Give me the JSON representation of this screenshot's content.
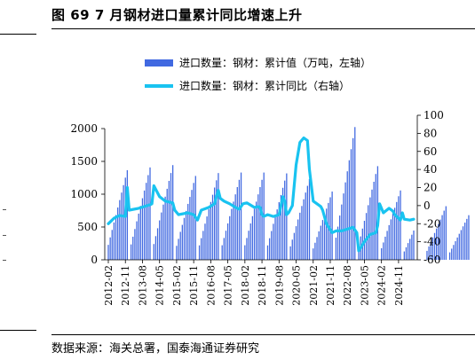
{
  "figure": {
    "title": "图 69 7 月钢材进口量累计同比增速上升",
    "source": "数据来源：海关总署，国泰海通证券研究"
  },
  "chart_data": {
    "type": "bar+line",
    "title": "图 69 7 月钢材进口量累计同比增速上升",
    "legend_position": "top-left",
    "grid": false,
    "x_labels": [
      "2012-02",
      "2012-11",
      "2013-08",
      "2014-05",
      "2015-02",
      "2015-11",
      "2016-08",
      "2017-05",
      "2018-02",
      "2018-11",
      "2019-08",
      "2020-05",
      "2021-02",
      "2021-11",
      "2022-08",
      "2023-05",
      "2024-02",
      "2024-11"
    ],
    "y_left": {
      "ylim": [
        0,
        2000
      ],
      "ticks": [
        0,
        500,
        1000,
        1500,
        2000
      ]
    },
    "y_right": {
      "ylim": [
        -60,
        100
      ],
      "ticks": [
        -60,
        -40,
        -20,
        0,
        20,
        40,
        60,
        80,
        100
      ]
    },
    "series": [
      {
        "name": "进口数量：钢材：累计值（万吨，左轴）",
        "type": "bar",
        "axis": "left",
        "color": "#4169e1",
        "year_totals": [
          1366,
          1408,
          1443,
          1278,
          1322,
          1330,
          1330,
          1317,
          1230,
          1040,
          2023,
          1427,
          1057,
          765,
          817,
          680
        ],
        "note": "cumulative monthly value, Feb to Dec each year"
      },
      {
        "name": "进口数量：钢材：累计同比（右轴）",
        "type": "line",
        "axis": "right",
        "color": "#19c3f0",
        "points": [
          {
            "m": "2012-02",
            "v": -20
          },
          {
            "m": "2012-05",
            "v": -14
          },
          {
            "m": "2012-08",
            "v": -11
          },
          {
            "m": "2012-11",
            "v": -12
          },
          {
            "m": "2012-12",
            "v": 20
          },
          {
            "m": "2013-01",
            "v": -5
          },
          {
            "m": "2013-06",
            "v": -3
          },
          {
            "m": "2013-12",
            "v": 1
          },
          {
            "m": "2014-01",
            "v": 2
          },
          {
            "m": "2014-02",
            "v": 22
          },
          {
            "m": "2014-05",
            "v": 10
          },
          {
            "m": "2014-08",
            "v": 5
          },
          {
            "m": "2014-12",
            "v": 3
          },
          {
            "m": "2015-01",
            "v": -5
          },
          {
            "m": "2015-03",
            "v": -10
          },
          {
            "m": "2015-08",
            "v": -8
          },
          {
            "m": "2015-11",
            "v": -10
          },
          {
            "m": "2016-01",
            "v": -16
          },
          {
            "m": "2016-03",
            "v": -5
          },
          {
            "m": "2016-07",
            "v": -2
          },
          {
            "m": "2016-10",
            "v": 2
          },
          {
            "m": "2016-11",
            "v": 10
          },
          {
            "m": "2016-12",
            "v": 17
          },
          {
            "m": "2017-01",
            "v": 8
          },
          {
            "m": "2017-03",
            "v": 5
          },
          {
            "m": "2017-06",
            "v": 2
          },
          {
            "m": "2017-09",
            "v": -2
          },
          {
            "m": "2017-11",
            "v": -4
          },
          {
            "m": "2018-01",
            "v": 2
          },
          {
            "m": "2018-03",
            "v": 3
          },
          {
            "m": "2018-07",
            "v": -2
          },
          {
            "m": "2018-09",
            "v": -1
          },
          {
            "m": "2018-10",
            "v": -2
          },
          {
            "m": "2018-11",
            "v": -10
          },
          {
            "m": "2018-12",
            "v": -12
          },
          {
            "m": "2019-02",
            "v": -10
          },
          {
            "m": "2019-05",
            "v": -12
          },
          {
            "m": "2019-08",
            "v": -10
          },
          {
            "m": "2019-10",
            "v": 10
          },
          {
            "m": "2019-11",
            "v": 5
          },
          {
            "m": "2019-12",
            "v": -10
          },
          {
            "m": "2020-01",
            "v": -8
          },
          {
            "m": "2020-03",
            "v": 0
          },
          {
            "m": "2020-05",
            "v": 45
          },
          {
            "m": "2020-07",
            "v": 70
          },
          {
            "m": "2020-09",
            "v": 75
          },
          {
            "m": "2020-11",
            "v": 72
          },
          {
            "m": "2020-12",
            "v": 40
          },
          {
            "m": "2021-02",
            "v": 5
          },
          {
            "m": "2021-04",
            "v": 2
          },
          {
            "m": "2021-06",
            "v": -1
          },
          {
            "m": "2021-07",
            "v": -5
          },
          {
            "m": "2021-09",
            "v": -20
          },
          {
            "m": "2021-12",
            "v": -30
          },
          {
            "m": "2022-02",
            "v": -28
          },
          {
            "m": "2022-05",
            "v": -28
          },
          {
            "m": "2022-08",
            "v": -26
          },
          {
            "m": "2022-11",
            "v": -24
          },
          {
            "m": "2023-01",
            "v": -30
          },
          {
            "m": "2023-02",
            "v": -50
          },
          {
            "m": "2023-05",
            "v": -40
          },
          {
            "m": "2023-08",
            "v": -32
          },
          {
            "m": "2023-11",
            "v": -30
          },
          {
            "m": "2023-12",
            "v": -22
          },
          {
            "m": "2024-01",
            "v": 2
          },
          {
            "m": "2024-03",
            "v": -8
          },
          {
            "m": "2024-06",
            "v": -3
          },
          {
            "m": "2024-08",
            "v": -6
          },
          {
            "m": "2024-09",
            "v": -10
          },
          {
            "m": "2024-11",
            "v": -14
          },
          {
            "m": "2024-12",
            "v": -16
          },
          {
            "m": "2025-01",
            "v": -8
          },
          {
            "m": "2025-02",
            "v": -15
          },
          {
            "m": "2025-05",
            "v": -16
          },
          {
            "m": "2025-07",
            "v": -15
          }
        ]
      }
    ]
  }
}
